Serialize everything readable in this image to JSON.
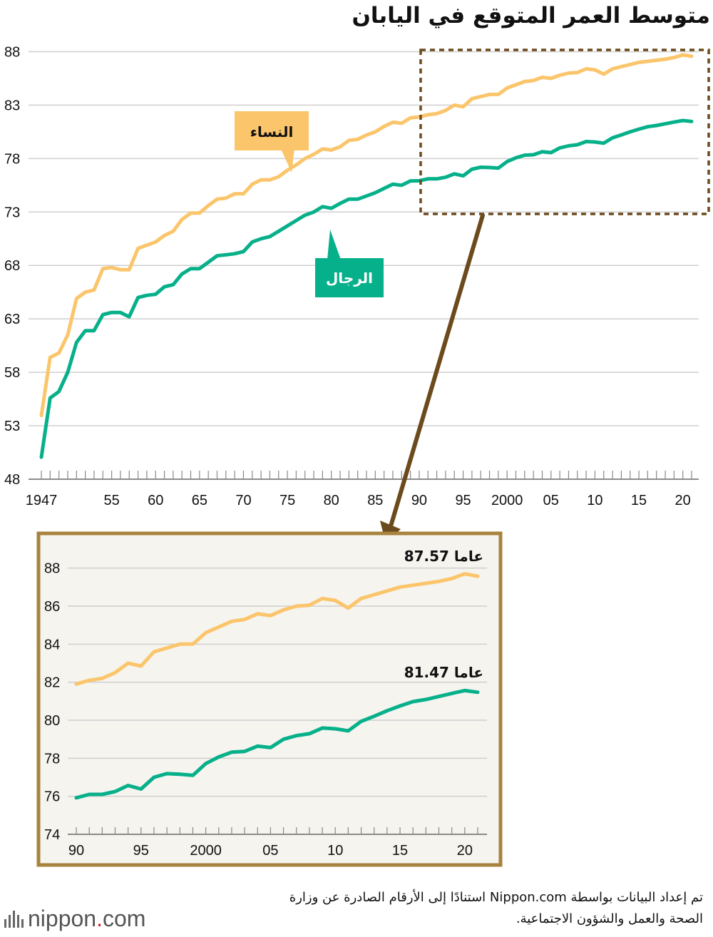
{
  "title": "متوسط العمر المتوقع في اليابان",
  "colors": {
    "women": "#fbc56b",
    "men": "#06b08a",
    "arrow": "#6b4a1c",
    "inset_border": "#a8833e",
    "inset_bg": "#f5f4ef",
    "grid": "#cfcfcf"
  },
  "labels": {
    "women": "النساء",
    "men": "الرجال"
  },
  "inset": {
    "women_end": "87.57 عاما",
    "men_end": "81.47 عاما"
  },
  "footnote": {
    "line1": "تم إعداد البيانات بواسطة Nippon.com استنادًا إلى الأرقام الصادرة عن وزارة",
    "line2": "الصحة والعمل والشؤون الاجتماعية."
  },
  "logo": {
    "brand": "nippon",
    "dot": ".",
    "suffix": "com",
    "icon": "bars-icon"
  },
  "chart_data": [
    {
      "type": "line",
      "title": "متوسط العمر المتوقع في اليابان",
      "xlim": [
        1947,
        2021
      ],
      "ylim": [
        48,
        90
      ],
      "yticks": [
        48,
        53,
        58,
        63,
        68,
        73,
        78,
        83,
        88
      ],
      "xtick_values": [
        1947,
        1955,
        1960,
        1965,
        1970,
        1975,
        1980,
        1985,
        1990,
        1995,
        2000,
        2005,
        2010,
        2015,
        2020
      ],
      "xtick_labels": [
        "1947",
        "55",
        "60",
        "65",
        "70",
        "75",
        "80",
        "85",
        "90",
        "95",
        "2000",
        "05",
        "10",
        "15",
        "20"
      ],
      "x": [
        1947,
        1948,
        1949,
        1950,
        1951,
        1952,
        1953,
        1954,
        1955,
        1956,
        1957,
        1958,
        1959,
        1960,
        1961,
        1962,
        1963,
        1964,
        1965,
        1966,
        1967,
        1968,
        1969,
        1970,
        1971,
        1972,
        1973,
        1974,
        1975,
        1976,
        1977,
        1978,
        1979,
        1980,
        1981,
        1982,
        1983,
        1984,
        1985,
        1986,
        1987,
        1988,
        1989,
        1990,
        1991,
        1992,
        1993,
        1994,
        1995,
        1996,
        1997,
        1998,
        1999,
        2000,
        2001,
        2002,
        2003,
        2004,
        2005,
        2006,
        2007,
        2008,
        2009,
        2010,
        2011,
        2012,
        2013,
        2014,
        2015,
        2016,
        2017,
        2018,
        2019,
        2020,
        2021
      ],
      "series": [
        {
          "name": "النساء",
          "values": [
            53.96,
            59.4,
            59.8,
            61.5,
            64.9,
            65.5,
            65.7,
            67.7,
            67.8,
            67.6,
            67.6,
            69.6,
            69.9,
            70.2,
            70.8,
            71.2,
            72.3,
            72.9,
            72.9,
            73.6,
            74.2,
            74.3,
            74.7,
            74.7,
            75.6,
            76.0,
            76.0,
            76.3,
            76.9,
            77.4,
            78.0,
            78.4,
            78.9,
            78.8,
            79.1,
            79.7,
            79.8,
            80.2,
            80.5,
            81.0,
            81.4,
            81.3,
            81.8,
            81.9,
            82.1,
            82.2,
            82.5,
            83.0,
            82.85,
            83.6,
            83.8,
            84.0,
            84.0,
            84.6,
            84.9,
            85.2,
            85.3,
            85.6,
            85.5,
            85.8,
            86.0,
            86.05,
            86.4,
            86.3,
            85.9,
            86.4,
            86.6,
            86.8,
            87.0,
            87.1,
            87.2,
            87.3,
            87.45,
            87.7,
            87.57
          ]
        },
        {
          "name": "الرجال",
          "values": [
            50.06,
            55.6,
            56.2,
            58.0,
            60.8,
            61.9,
            61.9,
            63.4,
            63.6,
            63.6,
            63.2,
            65.0,
            65.2,
            65.3,
            66.0,
            66.2,
            67.2,
            67.7,
            67.7,
            68.3,
            68.9,
            69.0,
            69.1,
            69.3,
            70.2,
            70.5,
            70.7,
            71.2,
            71.7,
            72.2,
            72.7,
            73.0,
            73.5,
            73.35,
            73.8,
            74.2,
            74.2,
            74.5,
            74.8,
            75.2,
            75.6,
            75.5,
            75.9,
            75.92,
            76.1,
            76.1,
            76.25,
            76.57,
            76.38,
            77.0,
            77.19,
            77.16,
            77.1,
            77.72,
            78.07,
            78.32,
            78.36,
            78.64,
            78.56,
            79.0,
            79.19,
            79.29,
            79.59,
            79.55,
            79.44,
            79.94,
            80.21,
            80.5,
            80.75,
            80.98,
            81.09,
            81.25,
            81.41,
            81.56,
            81.47
          ]
        }
      ]
    },
    {
      "type": "line",
      "xlim": [
        1990,
        2021
      ],
      "ylim": [
        74,
        89
      ],
      "yticks": [
        74,
        76,
        78,
        80,
        82,
        84,
        86,
        88
      ],
      "xtick_values": [
        1990,
        1995,
        2000,
        2005,
        2010,
        2015,
        2020
      ],
      "xtick_labels": [
        "90",
        "95",
        "2000",
        "05",
        "10",
        "15",
        "20"
      ],
      "x": [
        1990,
        1991,
        1992,
        1993,
        1994,
        1995,
        1996,
        1997,
        1998,
        1999,
        2000,
        2001,
        2002,
        2003,
        2004,
        2005,
        2006,
        2007,
        2008,
        2009,
        2010,
        2011,
        2012,
        2013,
        2014,
        2015,
        2016,
        2017,
        2018,
        2019,
        2020,
        2021
      ],
      "series": [
        {
          "name": "النساء",
          "values": [
            81.9,
            82.1,
            82.2,
            82.5,
            83.0,
            82.85,
            83.6,
            83.8,
            84.0,
            84.0,
            84.6,
            84.9,
            85.2,
            85.3,
            85.6,
            85.5,
            85.8,
            86.0,
            86.05,
            86.4,
            86.3,
            85.9,
            86.4,
            86.6,
            86.8,
            87.0,
            87.1,
            87.2,
            87.3,
            87.45,
            87.7,
            87.57
          ]
        },
        {
          "name": "الرجال",
          "values": [
            75.92,
            76.1,
            76.1,
            76.25,
            76.57,
            76.38,
            77.0,
            77.19,
            77.16,
            77.1,
            77.72,
            78.07,
            78.32,
            78.36,
            78.64,
            78.56,
            79.0,
            79.19,
            79.29,
            79.59,
            79.55,
            79.44,
            79.94,
            80.21,
            80.5,
            80.75,
            80.98,
            81.09,
            81.25,
            81.41,
            81.56,
            81.47
          ]
        }
      ]
    }
  ]
}
